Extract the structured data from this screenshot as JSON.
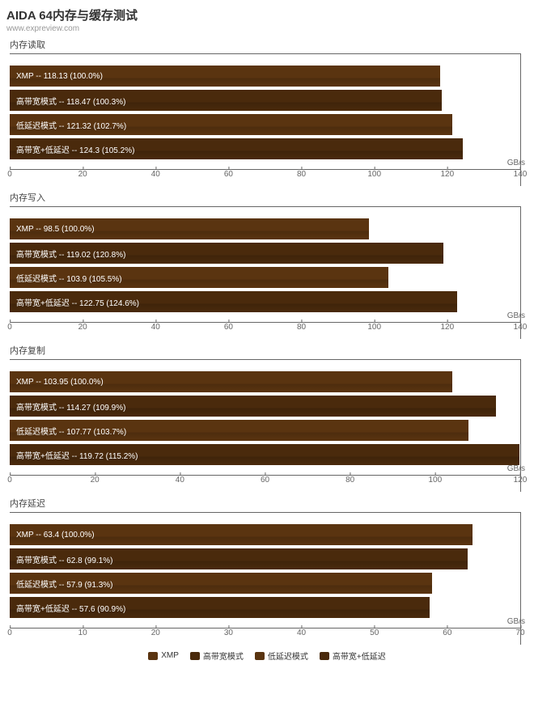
{
  "title": "AIDA 64内存与缓存测试",
  "subtitle": "www.expreview.com",
  "series_labels": [
    "XMP",
    "高带宽模式",
    "低延迟模式",
    "高带宽+低延迟"
  ],
  "colors": {
    "bar_base": "#5a3410",
    "bar_shade": "#4a2a0c",
    "text_light": "#ffffff",
    "axis": "#666666"
  },
  "panels": [
    {
      "title": "内存读取",
      "unit": "GB/s",
      "xmax": 140,
      "tick_step": 20,
      "data": [
        {
          "label": "XMP",
          "value": 118.13,
          "pct": "100.0%"
        },
        {
          "label": "高带宽模式",
          "value": 118.47,
          "pct": "100.3%"
        },
        {
          "label": "低延迟模式",
          "value": 121.32,
          "pct": "102.7%"
        },
        {
          "label": "高带宽+低延迟",
          "value": 124.3,
          "pct": "105.2%"
        }
      ]
    },
    {
      "title": "内存写入",
      "unit": "GB/s",
      "xmax": 140,
      "tick_step": 20,
      "data": [
        {
          "label": "XMP",
          "value": 98.5,
          "pct": "100.0%"
        },
        {
          "label": "高带宽模式",
          "value": 119.02,
          "pct": "120.8%"
        },
        {
          "label": "低延迟模式",
          "value": 103.9,
          "pct": "105.5%"
        },
        {
          "label": "高带宽+低延迟",
          "value": 122.75,
          "pct": "124.6%"
        }
      ]
    },
    {
      "title": "内存复制",
      "unit": "GB/s",
      "xmax": 120,
      "tick_step": 20,
      "data": [
        {
          "label": "XMP",
          "value": 103.95,
          "pct": "100.0%"
        },
        {
          "label": "高带宽模式",
          "value": 114.27,
          "pct": "109.9%"
        },
        {
          "label": "低延迟模式",
          "value": 107.77,
          "pct": "103.7%"
        },
        {
          "label": "高带宽+低延迟",
          "value": 119.72,
          "pct": "115.2%"
        }
      ]
    },
    {
      "title": "内存延迟",
      "unit": "GB/s",
      "xmax": 70,
      "tick_step": 10,
      "data": [
        {
          "label": "XMP",
          "value": 63.4,
          "pct": "100.0%"
        },
        {
          "label": "高带宽模式",
          "value": 62.8,
          "pct": "99.1%"
        },
        {
          "label": "低延迟模式",
          "value": 57.9,
          "pct": "91.3%"
        },
        {
          "label": "高带宽+低延迟",
          "value": 57.6,
          "pct": "90.9%"
        }
      ]
    }
  ],
  "legend_title": ""
}
